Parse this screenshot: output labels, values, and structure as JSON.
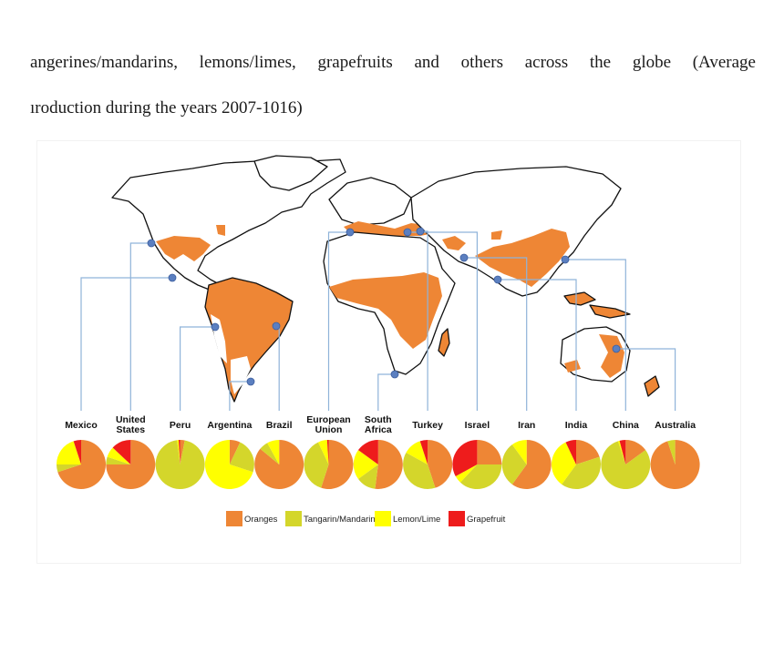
{
  "text": {
    "line1": "angerines/mandarins,  lemons/limes,  grapefruits  and  others  across  the  globe  (Average",
    "line2": "ıroduction during the years 2007-1016)"
  },
  "colors": {
    "Oranges": "#ee8635",
    "Tangarin/Mandarin": "#d4d62b",
    "Lemon/Lime": "#ffff00",
    "Grapefruit": "#ee1c1c",
    "map_land": "#ffffff",
    "map_outline": "#111111",
    "map_orange": "#ee8635",
    "leader_line": "#8fb3d9",
    "marker": "#5b7fc0"
  },
  "chart_data": {
    "type": "pie",
    "title": "",
    "legend": {
      "placement": "bottom",
      "entries": [
        "Oranges",
        "Tangarin/Mandarin",
        "Lemon/Lime",
        "Grapefruit"
      ]
    },
    "series_order": [
      "Oranges",
      "Tangarin/Mandarin",
      "Lemon/Lime",
      "Grapefruit"
    ],
    "pies": [
      {
        "label": "Mexico",
        "values": {
          "Oranges": 70,
          "Tangarin/Mandarin": 5,
          "Lemon/Lime": 20,
          "Grapefruit": 5
        }
      },
      {
        "label": "United\nStates",
        "values": {
          "Oranges": 75,
          "Tangarin/Mandarin": 5,
          "Lemon/Lime": 7,
          "Grapefruit": 13
        }
      },
      {
        "label": "Peru",
        "values": {
          "Oranges": 3,
          "Tangarin/Mandarin": 95,
          "Lemon/Lime": 1,
          "Grapefruit": 1
        }
      },
      {
        "label": "Argentina",
        "values": {
          "Oranges": 7,
          "Tangarin/Mandarin": 23,
          "Lemon/Lime": 70,
          "Grapefruit": 0
        }
      },
      {
        "label": "Brazil",
        "values": {
          "Oranges": 86,
          "Tangarin/Mandarin": 6,
          "Lemon/Lime": 8,
          "Grapefruit": 0
        }
      },
      {
        "label": "European\nUnion",
        "values": {
          "Oranges": 55,
          "Tangarin/Mandarin": 38,
          "Lemon/Lime": 6,
          "Grapefruit": 1
        }
      },
      {
        "label": "South\nAfrica",
        "values": {
          "Oranges": 52,
          "Tangarin/Mandarin": 13,
          "Lemon/Lime": 20,
          "Grapefruit": 15
        }
      },
      {
        "label": "Turkey",
        "values": {
          "Oranges": 45,
          "Tangarin/Mandarin": 38,
          "Lemon/Lime": 12,
          "Grapefruit": 5
        }
      },
      {
        "label": "Israel",
        "values": {
          "Oranges": 25,
          "Tangarin/Mandarin": 37,
          "Lemon/Lime": 5,
          "Grapefruit": 33
        }
      },
      {
        "label": "Iran",
        "values": {
          "Oranges": 60,
          "Tangarin/Mandarin": 30,
          "Lemon/Lime": 10,
          "Grapefruit": 0
        }
      },
      {
        "label": "India",
        "values": {
          "Oranges": 20,
          "Tangarin/Mandarin": 40,
          "Lemon/Lime": 33,
          "Grapefruit": 7
        }
      },
      {
        "label": "China",
        "values": {
          "Oranges": 15,
          "Tangarin/Mandarin": 80,
          "Lemon/Lime": 1,
          "Grapefruit": 4
        }
      },
      {
        "label": "Australia",
        "values": {
          "Oranges": 95,
          "Tangarin/Mandarin": 5,
          "Lemon/Lime": 0,
          "Grapefruit": 0
        }
      }
    ]
  }
}
